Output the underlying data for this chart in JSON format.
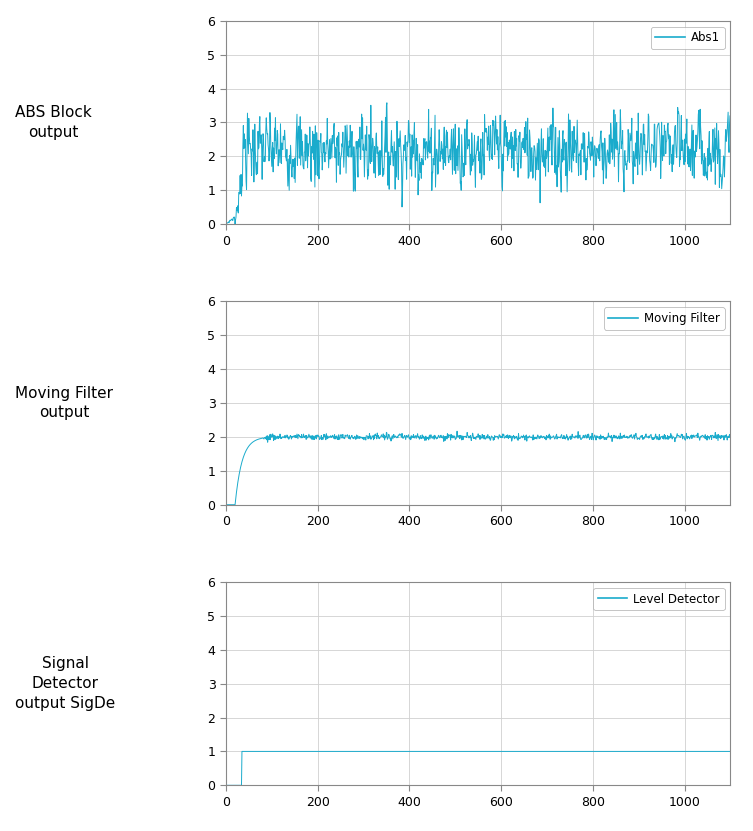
{
  "n_samples": 1100,
  "signal_start": 20,
  "abs_amplitude": 2.2,
  "abs_noise_std": 0.5,
  "abs_initial_ramp": 20,
  "moving_filter_window": 50,
  "moving_filter_steady": 2.0,
  "moving_filter_ripple": 0.045,
  "level_detector_threshold": 35,
  "line_color": "#1AABCC",
  "line_width": 0.7,
  "xlim": [
    0,
    1100
  ],
  "ylim": [
    0,
    6
  ],
  "yticks": [
    0,
    1,
    2,
    3,
    4,
    5,
    6
  ],
  "xticks": [
    0,
    200,
    400,
    600,
    800,
    1000
  ],
  "grid_color": "#D0D0D0",
  "grid_linewidth": 0.6,
  "legend1": "Abs1",
  "legend2": "Moving Filter",
  "legend3": "Level Detector",
  "label1_line1": "ABS Block",
  "label1_line2": "output",
  "label2_line1": "Moving Filter",
  "label2_line2": "output",
  "label3_line1": "Signal",
  "label3_line2": "Detector",
  "label3_line3": "output SigDe",
  "label_fontsize": 11,
  "tick_fontsize": 9,
  "legend_fontsize": 8.5,
  "background_color": "#FFFFFF",
  "seed": 7
}
